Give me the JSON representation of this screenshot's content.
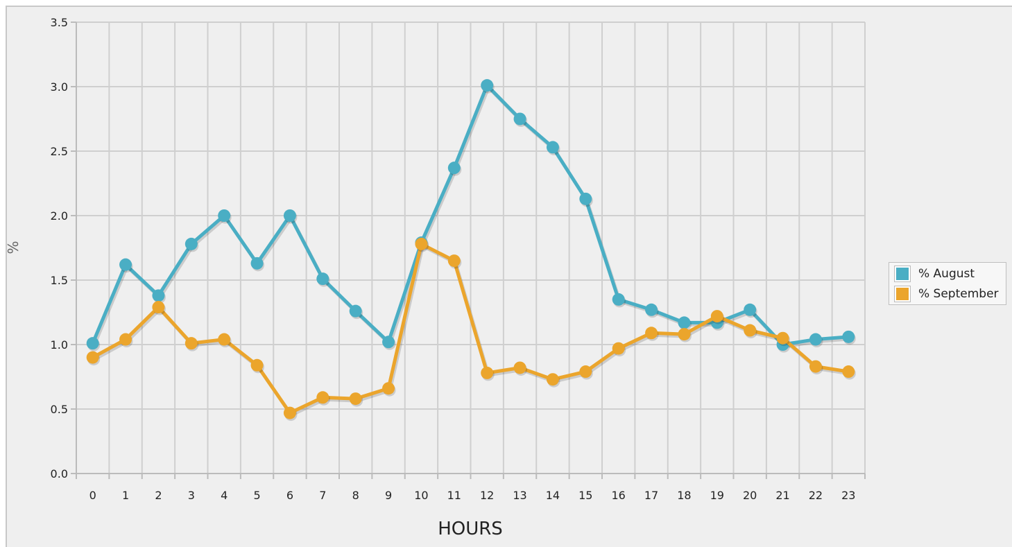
{
  "chart_data": {
    "type": "line",
    "title": "",
    "xlabel": "HOURS",
    "ylabel": "%",
    "categories": [
      "0",
      "1",
      "2",
      "3",
      "4",
      "5",
      "6",
      "7",
      "8",
      "9",
      "10",
      "11",
      "12",
      "13",
      "14",
      "15",
      "16",
      "17",
      "18",
      "19",
      "20",
      "21",
      "22",
      "23"
    ],
    "y_ticks": [
      "0.0",
      "0.5",
      "1.0",
      "1.5",
      "2.0",
      "2.5",
      "3.0",
      "3.5"
    ],
    "ylim": [
      0,
      3.5
    ],
    "grid": true,
    "legend_position": "right",
    "series": [
      {
        "name": "% August",
        "color": "#4aaec4",
        "values": [
          1.01,
          1.62,
          1.38,
          1.78,
          2.0,
          1.63,
          2.0,
          1.51,
          1.26,
          1.02,
          1.79,
          2.37,
          3.01,
          2.75,
          2.53,
          2.13,
          1.35,
          1.27,
          1.17,
          1.17,
          1.27,
          1.0,
          1.04,
          1.06
        ]
      },
      {
        "name": "% September",
        "color": "#eba52c",
        "values": [
          0.9,
          1.04,
          1.29,
          1.01,
          1.04,
          0.84,
          0.47,
          0.59,
          0.58,
          0.66,
          1.78,
          1.65,
          0.78,
          0.82,
          0.73,
          0.79,
          0.97,
          1.09,
          1.08,
          1.22,
          1.11,
          1.05,
          0.83,
          0.79
        ]
      }
    ]
  }
}
